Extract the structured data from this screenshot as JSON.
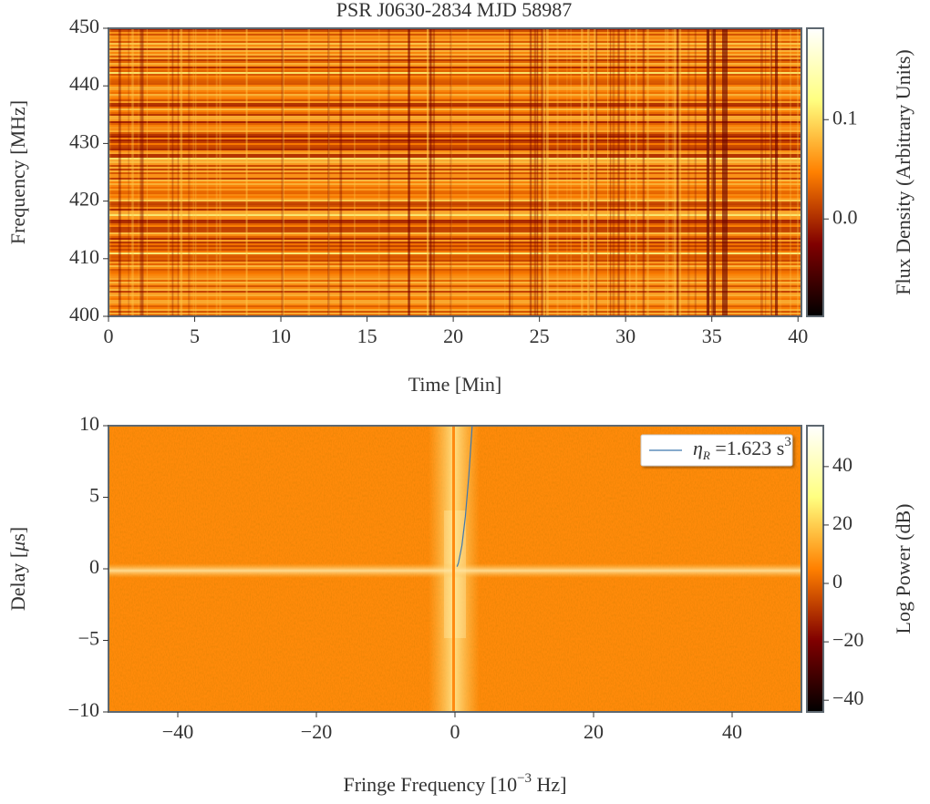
{
  "chart_data": [
    {
      "type": "heatmap",
      "title": "PSR J0630-2834 MJD 58987",
      "x_label": "Time [Min]",
      "y_label": "Frequency [MHz]",
      "xlim": [
        0,
        40.2
      ],
      "ylim": [
        400,
        450
      ],
      "xticks": [
        0,
        5,
        10,
        15,
        20,
        25,
        30,
        35,
        40
      ],
      "yticks": [
        400,
        410,
        420,
        430,
        440,
        450
      ],
      "colorbar": {
        "label": "Flux Density (Arbitrary Units)",
        "lim": [
          -0.098,
          0.192
        ],
        "ticks": [
          {
            "value": 0,
            "label": "0.0"
          },
          0.1
        ]
      }
    },
    {
      "type": "heatmap",
      "x_label": [
        "Fringe Frequency [10",
        "−3",
        " Hz]"
      ],
      "y_label": [
        "Delay [",
        "μ",
        "s]"
      ],
      "xlim": [
        -50,
        50
      ],
      "ylim": [
        -10,
        10
      ],
      "xticks": [
        {
          "value": -40,
          "label": "−40"
        },
        {
          "value": -20,
          "label": "−20"
        },
        0,
        20,
        40
      ],
      "yticks": [
        {
          "value": -10,
          "label": "−10"
        },
        {
          "value": -5,
          "label": "−5"
        },
        0,
        5,
        10
      ],
      "colorbar": {
        "label": "Log Power (dB)",
        "lim": [
          -44,
          54
        ],
        "ticks": [
          {
            "value": -40,
            "label": "−40"
          },
          {
            "value": -20,
            "label": "−20"
          },
          0,
          20,
          40
        ]
      },
      "legend": "upper right",
      "series": [
        {
          "name": [
            "η",
            "R",
            " =1.623 s",
            "3"
          ],
          "color": "#3f78ad",
          "x": [
            0.3,
            0.5,
            1,
            1.5,
            2,
            2.48
          ],
          "values": [
            0.15,
            0.41,
            1.62,
            3.65,
            6.49,
            9.98
          ]
        }
      ]
    }
  ]
}
